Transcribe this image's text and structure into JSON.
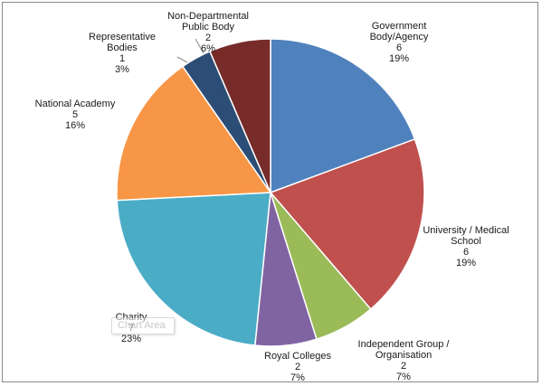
{
  "chart_data": {
    "type": "pie",
    "title": "",
    "tooltip": "Chart Area",
    "slices": [
      {
        "label": "Government Body/Agency",
        "label_lines": [
          "Government",
          "Body/Agency"
        ],
        "value": 6,
        "percent": "19%",
        "color": "#4f81bd"
      },
      {
        "label": "University / Medical School",
        "label_lines": [
          "University / Medical",
          "School"
        ],
        "value": 6,
        "percent": "19%",
        "color": "#c0504d"
      },
      {
        "label": "Independent Group / Organisation",
        "label_lines": [
          "Independent Group /",
          "Organisation"
        ],
        "value": 2,
        "percent": "7%",
        "color": "#9bbb59"
      },
      {
        "label": "Royal Colleges",
        "label_lines": [
          "Royal Colleges"
        ],
        "value": 2,
        "percent": "7%",
        "color": "#8064a2"
      },
      {
        "label": "Charity",
        "label_lines": [
          "Charity"
        ],
        "value": 7,
        "percent": "23%",
        "color": "#4bacc6"
      },
      {
        "label": "National Academy",
        "label_lines": [
          "National Academy"
        ],
        "value": 5,
        "percent": "16%",
        "color": "#f79646"
      },
      {
        "label": "Representative Bodies",
        "label_lines": [
          "Representative",
          "Bodies"
        ],
        "value": 1,
        "percent": "3%",
        "color": "#2c4d75"
      },
      {
        "label": "Non-Departmental Public Body",
        "label_lines": [
          "Non-Departmental",
          "Public Body"
        ],
        "value": 2,
        "percent": "6%",
        "color": "#772c2a"
      }
    ]
  }
}
